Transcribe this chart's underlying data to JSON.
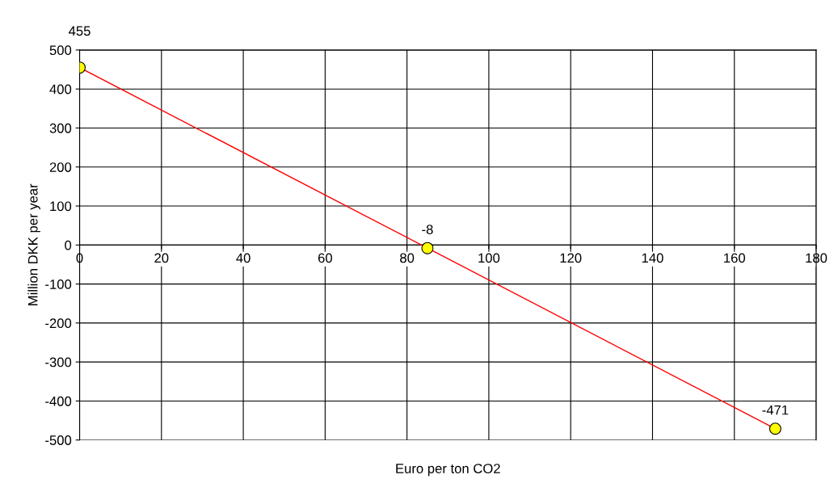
{
  "chart_data": {
    "type": "line",
    "xlabel": "Euro per ton CO2",
    "ylabel": "Million DKK per year",
    "x": [
      0,
      85,
      170
    ],
    "series": [
      {
        "color": "#ff0000",
        "colors": [
          "#ffff00",
          "#ffff00",
          "#ffff00"
        ],
        "values": [
          455,
          -8,
          -471
        ]
      }
    ],
    "xlim": [
      0,
      180
    ],
    "xticks": [
      0,
      20,
      40,
      60,
      80,
      100,
      120,
      140,
      160,
      180
    ],
    "ylim": [
      -500,
      500
    ],
    "yticks": [
      -500,
      -400,
      -300,
      -200,
      -100,
      0,
      100,
      200,
      300,
      400,
      500
    ],
    "grid": true,
    "marker": "circle",
    "line_style": "solid",
    "data_labels": true
  }
}
